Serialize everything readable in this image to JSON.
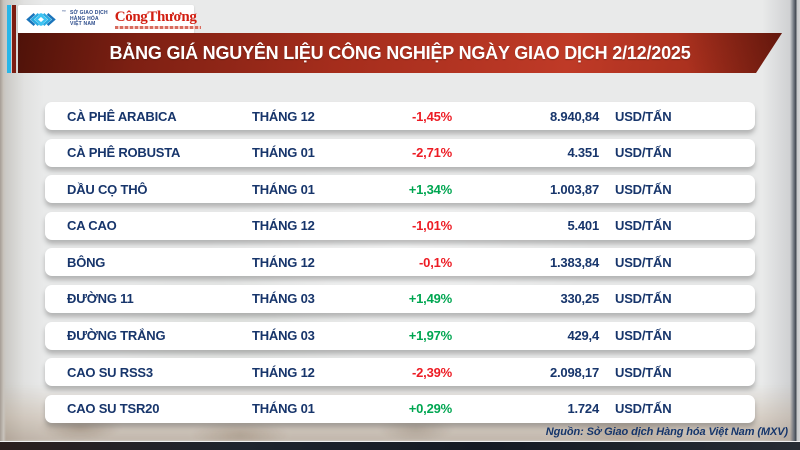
{
  "header": {
    "mxv": {
      "org_lines": [
        "SỞ GIAO DỊCH",
        "HÀNG HÓA",
        "VIỆT NAM"
      ],
      "tm": "™"
    },
    "congthuong": {
      "name": "CôngThương"
    },
    "title": "BẢNG GIÁ NGUYÊN LIỆU CÔNG NGHIỆP NGÀY GIAO DỊCH 2/12/2025"
  },
  "table": {
    "rows": [
      {
        "name": "CÀ PHÊ ARABICA",
        "month": "THÁNG 12",
        "change": "-1,45%",
        "direction": "down",
        "price": "8.940,84",
        "unit": "USD/TẤN"
      },
      {
        "name": "CÀ PHÊ ROBUSTA",
        "month": "THÁNG 01",
        "change": "-2,71%",
        "direction": "down",
        "price": "4.351",
        "unit": "USD/TẤN"
      },
      {
        "name": "DẦU CỌ THÔ",
        "month": "THÁNG 01",
        "change": "+1,34%",
        "direction": "up",
        "price": "1.003,87",
        "unit": "USD/TẤN"
      },
      {
        "name": "CA CAO",
        "month": "THÁNG 12",
        "change": "-1,01%",
        "direction": "down",
        "price": "5.401",
        "unit": "USD/TẤN"
      },
      {
        "name": "BÔNG",
        "month": "THÁNG 12",
        "change": "-0,1%",
        "direction": "down",
        "price": "1.383,84",
        "unit": "USD/TẤN"
      },
      {
        "name": "ĐƯỜNG 11",
        "month": "THÁNG 03",
        "change": "+1,49%",
        "direction": "up",
        "price": "330,25",
        "unit": "USD/TẤN"
      },
      {
        "name": "ĐƯỜNG TRẮNG",
        "month": "THÁNG 03",
        "change": "+1,97%",
        "direction": "up",
        "price": "429,4",
        "unit": "USD/TẤN"
      },
      {
        "name": "CAO SU RSS3",
        "month": "THÁNG 12",
        "change": "-2,39%",
        "direction": "down",
        "price": "2.098,17",
        "unit": "USD/TẤN"
      },
      {
        "name": "CAO SU TSR20",
        "month": "THÁNG 01",
        "change": "+0,29%",
        "direction": "up",
        "price": "1.724",
        "unit": "USD/TẤN"
      }
    ]
  },
  "footer": {
    "source": "Nguồn: Sở Giao dịch Hàng hóa Việt Nam (MXV)"
  },
  "colors": {
    "banner_red": "#b23120",
    "negative_red": "#ed1c24",
    "positive_green": "#00a651",
    "navy_text": "#17356b",
    "logo_cyan": "#29abe2",
    "masthead_red": "#d21f12",
    "bottom_bar": "#1d2531"
  },
  "chart_data": {
    "type": "table",
    "title": "BẢNG GIÁ NGUYÊN LIỆU CÔNG NGHIỆP NGÀY GIAO DỊCH 2/12/2025",
    "date": "2/12/2025",
    "columns": [
      "name",
      "contract_month",
      "change_pct",
      "price",
      "unit"
    ],
    "rows": [
      {
        "name": "CÀ PHÊ ARABICA",
        "contract_month": "THÁNG 12",
        "change_pct": -1.45,
        "price": 8940.84,
        "unit": "USD/TẤN"
      },
      {
        "name": "CÀ PHÊ ROBUSTA",
        "contract_month": "THÁNG 01",
        "change_pct": -2.71,
        "price": 4351,
        "unit": "USD/TẤN"
      },
      {
        "name": "DẦU CỌ THÔ",
        "contract_month": "THÁNG 01",
        "change_pct": 1.34,
        "price": 1003.87,
        "unit": "USD/TẤN"
      },
      {
        "name": "CA CAO",
        "contract_month": "THÁNG 12",
        "change_pct": -1.01,
        "price": 5401,
        "unit": "USD/TẤN"
      },
      {
        "name": "BÔNG",
        "contract_month": "THÁNG 12",
        "change_pct": -0.1,
        "price": 1383.84,
        "unit": "USD/TẤN"
      },
      {
        "name": "ĐƯỜNG 11",
        "contract_month": "THÁNG 03",
        "change_pct": 1.49,
        "price": 330.25,
        "unit": "USD/TẤN"
      },
      {
        "name": "ĐƯỜNG TRẮNG",
        "contract_month": "THÁNG 03",
        "change_pct": 1.97,
        "price": 429.4,
        "unit": "USD/TẤN"
      },
      {
        "name": "CAO SU RSS3",
        "contract_month": "THÁNG 12",
        "change_pct": -2.39,
        "price": 2098.17,
        "unit": "USD/TẤN"
      },
      {
        "name": "CAO SU TSR20",
        "contract_month": "THÁNG 01",
        "change_pct": 0.29,
        "price": 1724,
        "unit": "USD/TẤN"
      }
    ],
    "source": "Nguồn: Sở Giao dịch Hàng hóa Việt Nam (MXV)"
  }
}
